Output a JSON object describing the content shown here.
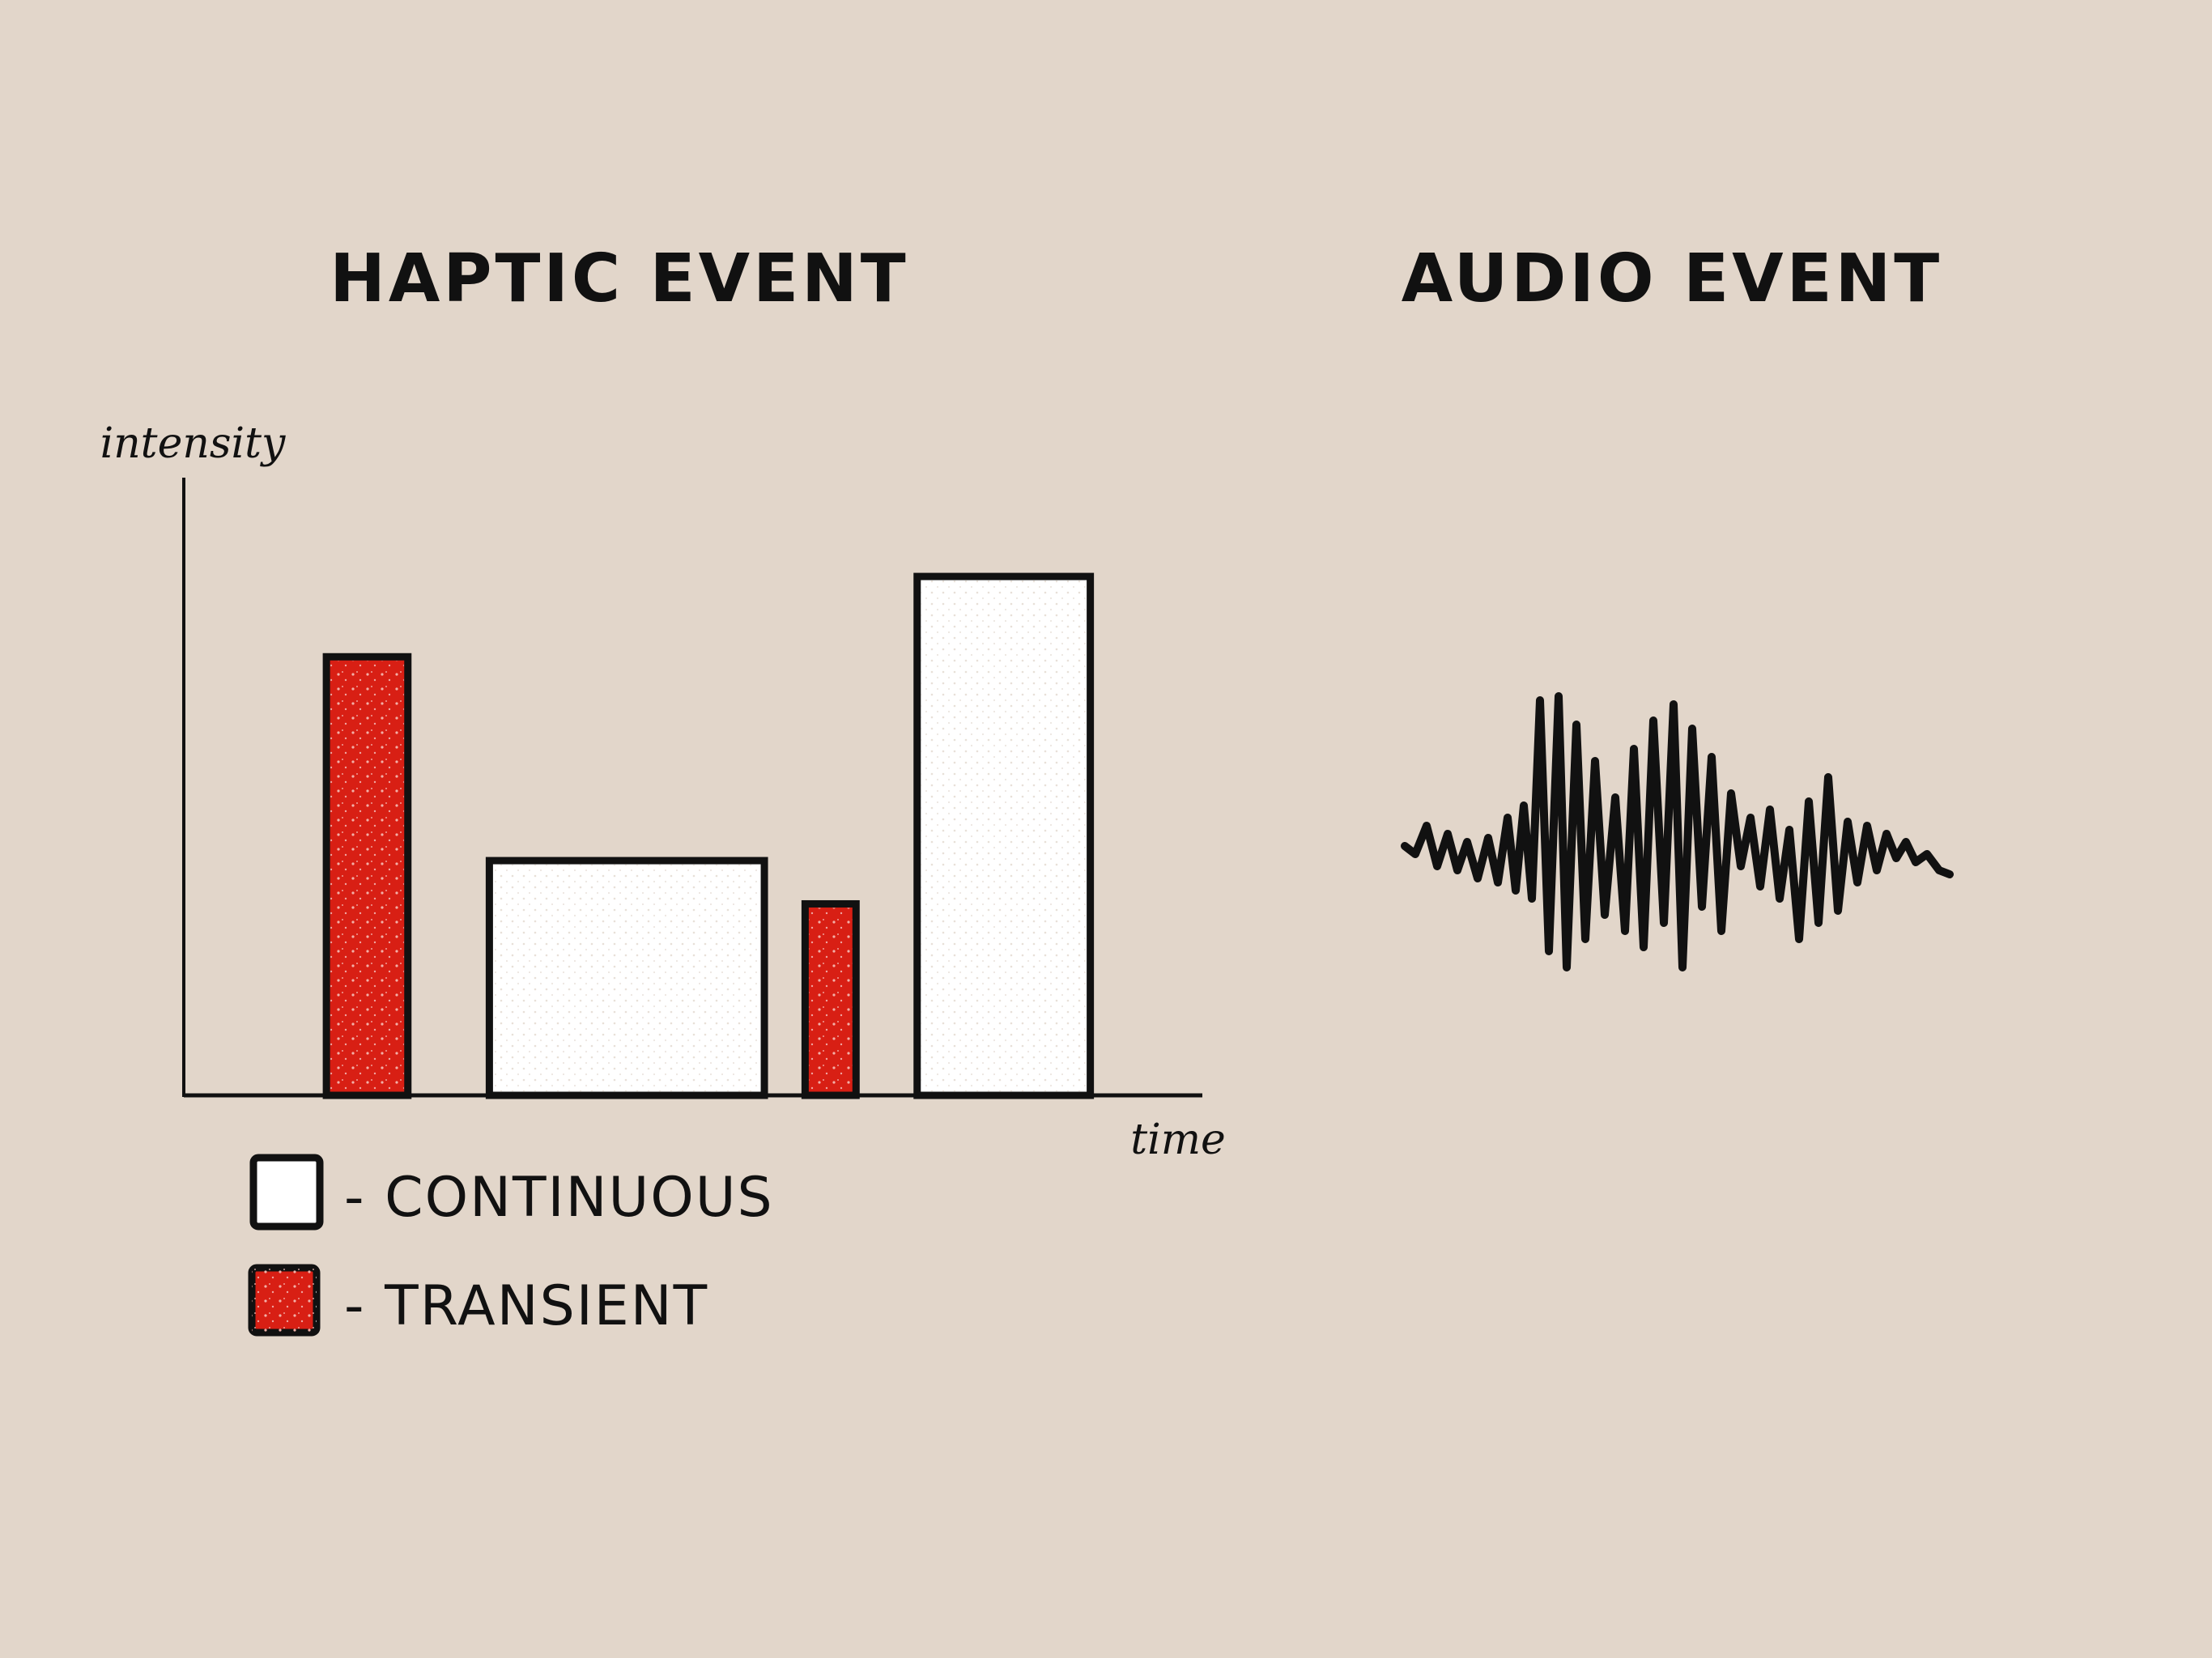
{
  "haptic": {
    "title": "HAPTIC EVENT",
    "y_label": "intensity",
    "x_label": "time",
    "legend": [
      {
        "label": "- CONTINUOUS",
        "type": "continuous"
      },
      {
        "label": "- TRANSIENT",
        "type": "transient"
      }
    ]
  },
  "audio": {
    "title": "AUDIO EVENT"
  },
  "colors": {
    "background": "#e2d6ca",
    "transient": "#d81f14",
    "continuous": "#ffffff",
    "ink": "#111111"
  },
  "chart_data": {
    "type": "bar",
    "title": "HAPTIC EVENT",
    "xlabel": "time",
    "ylabel": "intensity",
    "events": [
      {
        "type": "transient",
        "start": 0.14,
        "end": 0.22,
        "intensity": 0.71
      },
      {
        "type": "continuous",
        "start": 0.3,
        "end": 0.57,
        "intensity": 0.38
      },
      {
        "type": "transient",
        "start": 0.61,
        "end": 0.66,
        "intensity": 0.31
      },
      {
        "type": "continuous",
        "start": 0.72,
        "end": 0.89,
        "intensity": 0.84
      }
    ]
  }
}
